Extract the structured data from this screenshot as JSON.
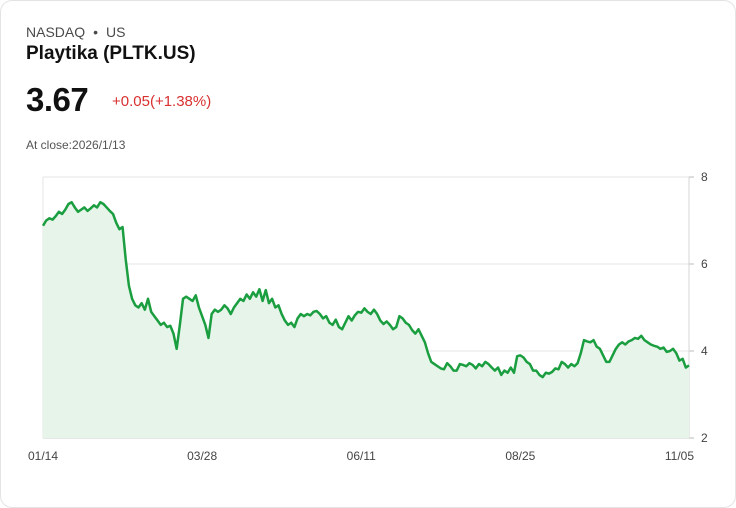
{
  "header": {
    "exchange": "NASDAQ",
    "separator": "•",
    "market": "US",
    "name": "Playtika (PLTK.US)",
    "price": "3.67",
    "change": "+0.05(+1.38%)",
    "close_label": "At close:2026/1/13"
  },
  "colors": {
    "line": "#1a9e3f",
    "fill": "#e6f4ea",
    "change_negative_red": "#d93030"
  },
  "chart_data": {
    "type": "area",
    "title": "",
    "xlabel": "",
    "ylabel": "",
    "ylim": [
      2,
      8
    ],
    "y_ticks": [
      "8",
      "6",
      "4",
      "2"
    ],
    "y_tick_values": [
      8,
      6,
      4,
      2
    ],
    "x_ticks": [
      "01/14",
      "03/28",
      "06/11",
      "08/25",
      "11/05"
    ],
    "x_tick_index": [
      0,
      50,
      100,
      150,
      200
    ],
    "series": [
      {
        "name": "PLTK.US",
        "values": [
          6.88,
          7.0,
          7.05,
          7.02,
          7.1,
          7.2,
          7.15,
          7.25,
          7.38,
          7.42,
          7.3,
          7.2,
          7.25,
          7.3,
          7.22,
          7.28,
          7.35,
          7.3,
          7.42,
          7.38,
          7.3,
          7.22,
          7.15,
          6.95,
          6.8,
          6.85,
          6.1,
          5.5,
          5.2,
          5.05,
          5.0,
          5.1,
          4.95,
          5.2,
          4.9,
          4.8,
          4.7,
          4.6,
          4.65,
          4.55,
          4.58,
          4.4,
          4.05,
          4.6,
          5.2,
          5.25,
          5.2,
          5.15,
          5.28,
          5.0,
          4.8,
          4.6,
          4.3,
          4.85,
          4.95,
          4.9,
          4.95,
          5.05,
          4.98,
          4.85,
          5.0,
          5.1,
          5.2,
          5.15,
          5.3,
          5.2,
          5.35,
          5.25,
          5.42,
          5.15,
          5.4,
          5.1,
          5.2,
          5.0,
          5.05,
          4.85,
          4.7,
          4.6,
          4.65,
          4.55,
          4.75,
          4.85,
          4.8,
          4.85,
          4.82,
          4.9,
          4.92,
          4.85,
          4.75,
          4.8,
          4.65,
          4.6,
          4.72,
          4.55,
          4.5,
          4.65,
          4.8,
          4.7,
          4.82,
          4.9,
          4.88,
          4.98,
          4.9,
          4.85,
          4.95,
          4.85,
          4.7,
          4.62,
          4.68,
          4.6,
          4.5,
          4.55,
          4.8,
          4.75,
          4.65,
          4.6,
          4.48,
          4.4,
          4.5,
          4.35,
          4.2,
          3.95,
          3.75,
          3.7,
          3.65,
          3.6,
          3.58,
          3.72,
          3.65,
          3.55,
          3.55,
          3.7,
          3.68,
          3.65,
          3.72,
          3.68,
          3.6,
          3.7,
          3.65,
          3.75,
          3.7,
          3.62,
          3.55,
          3.62,
          3.45,
          3.55,
          3.5,
          3.62,
          3.5,
          3.88,
          3.9,
          3.85,
          3.75,
          3.7,
          3.55,
          3.55,
          3.45,
          3.4,
          3.5,
          3.48,
          3.52,
          3.6,
          3.58,
          3.75,
          3.7,
          3.62,
          3.7,
          3.65,
          3.72,
          3.95,
          4.25,
          4.22,
          4.2,
          4.25,
          4.1,
          4.05,
          3.9,
          3.75,
          3.75,
          3.9,
          4.05,
          4.15,
          4.2,
          4.15,
          4.22,
          4.25,
          4.3,
          4.28,
          4.35,
          4.25,
          4.2,
          4.15,
          4.12,
          4.1,
          4.05,
          4.08,
          3.98,
          4.0,
          4.05,
          3.95,
          3.78,
          3.82,
          3.62,
          3.67
        ]
      }
    ]
  }
}
